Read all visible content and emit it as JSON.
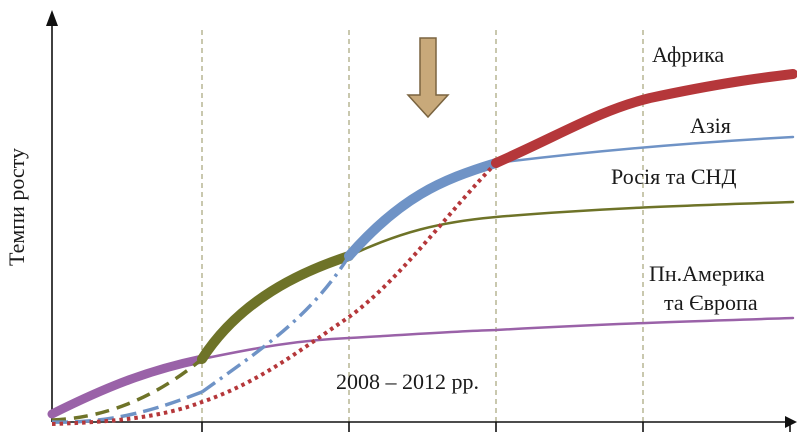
{
  "chart_data": {
    "type": "line",
    "title": "",
    "ylabel": "Темпи росту",
    "xlabel": "",
    "period_label": "2008 – 2012 рр.",
    "grid": "vertical dashed",
    "colors": {
      "africa": "#b5373a",
      "asia": "#6f93c6",
      "cis": "#6e7328",
      "na_europe": "#9a62a8",
      "grid": "#a5a479",
      "arrow_fill": "#c8a97a",
      "arrow_stroke": "#7a6440"
    },
    "series": [
      {
        "key": "africa",
        "name": "Африка"
      },
      {
        "key": "asia",
        "name": "Азія"
      },
      {
        "key": "cis",
        "name": "Росія та СНД"
      },
      {
        "key": "na_europe",
        "name_lines": [
          "Пн.Америка",
          "та Європа"
        ]
      }
    ]
  }
}
